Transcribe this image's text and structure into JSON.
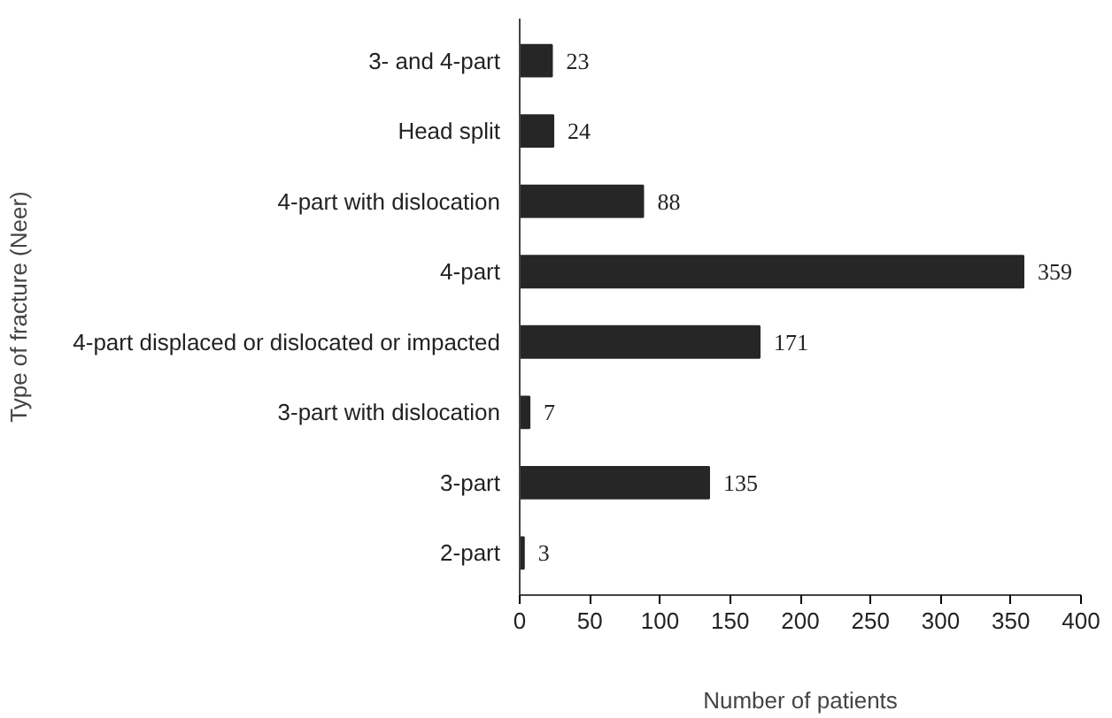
{
  "chart_data": {
    "type": "bar",
    "orientation": "horizontal",
    "xlabel": "Number of patients",
    "ylabel": "Type of fracture (Neer)",
    "categories": [
      "3- and 4-part",
      "Head split",
      "4-part with dislocation",
      "4-part",
      "4-part displaced or dislocated or impacted",
      "3-part with dislocation",
      "3-part",
      "2-part"
    ],
    "values": [
      23,
      24,
      88,
      359,
      171,
      7,
      135,
      3
    ],
    "color": "#262626",
    "data_labels": true,
    "grid": false,
    "xlim": [
      0,
      400
    ],
    "xticks": [
      0,
      50,
      100,
      150,
      200,
      250,
      300,
      350,
      400
    ]
  }
}
